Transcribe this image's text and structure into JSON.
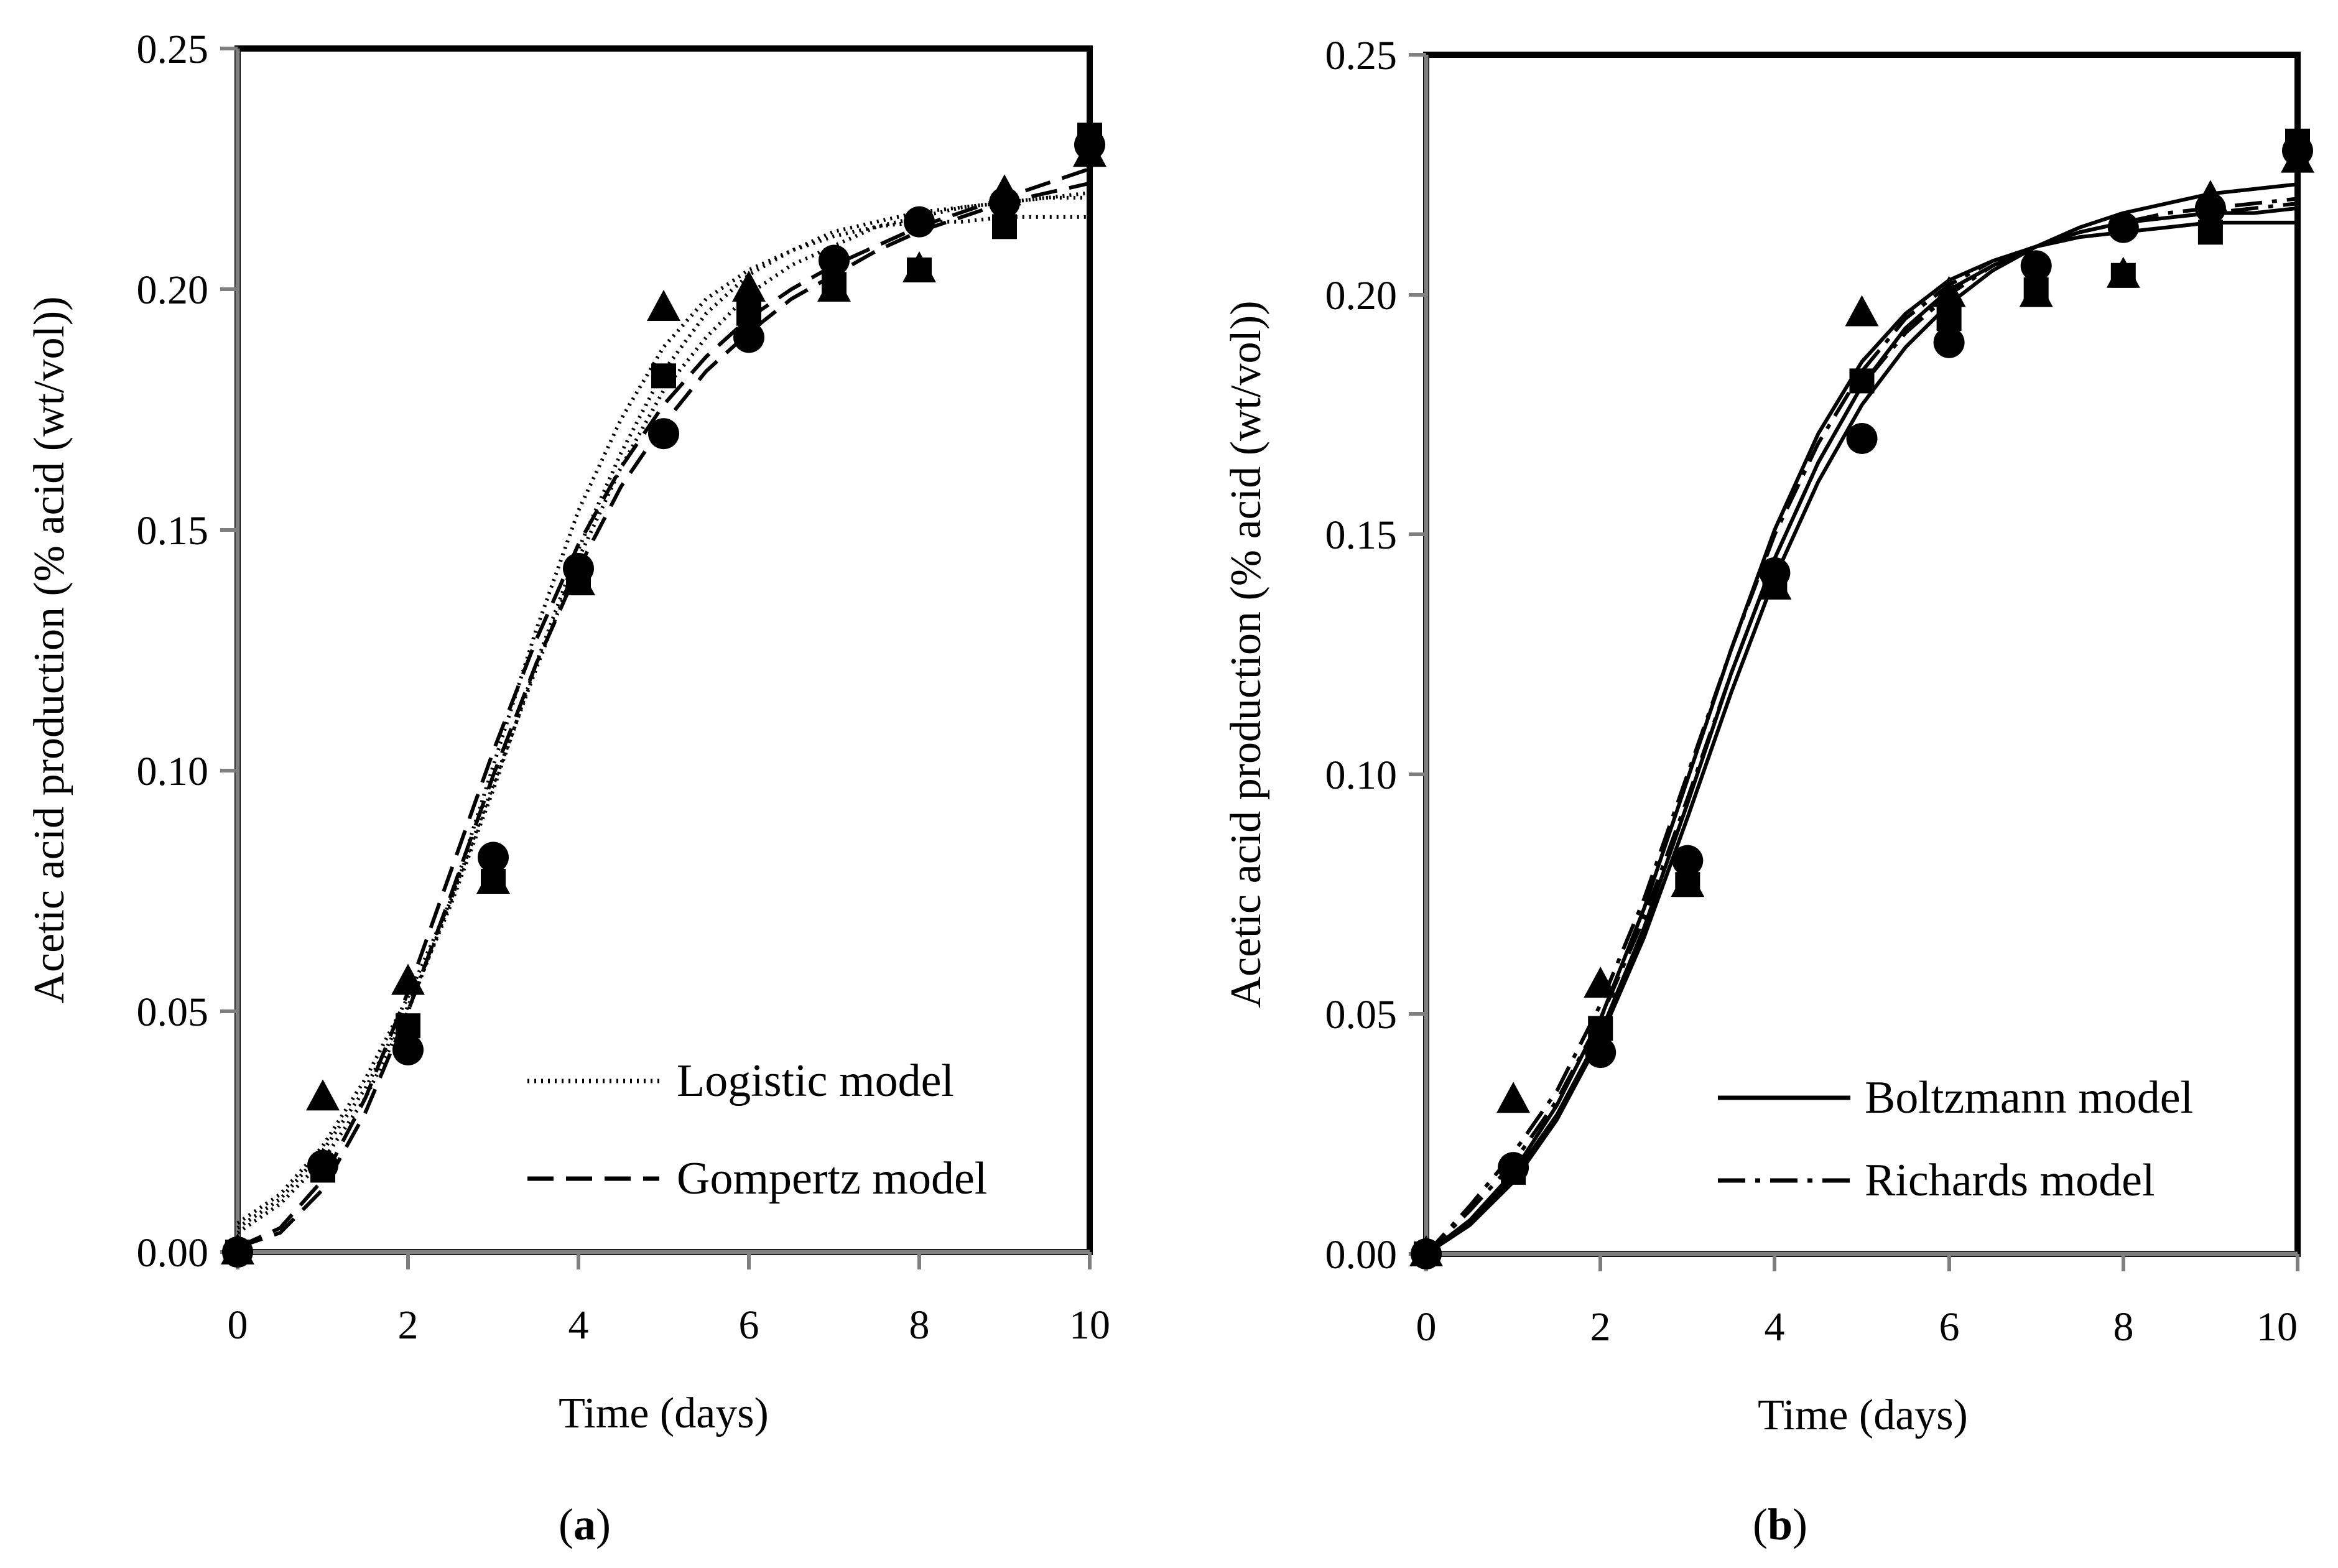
{
  "chart_data": [
    {
      "type": "line",
      "panel_label_open": "(",
      "panel_label_letter": "a",
      "panel_label_close": ")",
      "title": "",
      "xlabel": "Time (days)",
      "ylabel": "Acetic acid production (% acid (wt/vol))",
      "xlim": [
        0,
        10
      ],
      "ylim": [
        0,
        0.25
      ],
      "xticks": [
        0,
        2,
        4,
        6,
        8,
        10
      ],
      "xtick_labels": [
        "0",
        "2",
        "4",
        "6",
        "8",
        "10"
      ],
      "yticks": [
        0,
        0.05,
        0.1,
        0.15,
        0.2,
        0.25
      ],
      "ytick_labels": [
        "0.00",
        "0.05",
        "0.10",
        "0.15",
        "0.20",
        "0.25"
      ],
      "grid": false,
      "legend_position": "bottom-right",
      "legend": [
        {
          "label": "Logistic model",
          "style": "dotted"
        },
        {
          "label": "Gompertz model",
          "style": "dashed"
        }
      ],
      "observed": [
        {
          "marker": "triangle",
          "x": [
            0,
            1,
            2,
            3,
            4,
            5,
            6,
            7,
            8,
            9,
            10
          ],
          "y": [
            0,
            0.032,
            0.056,
            0.077,
            0.139,
            0.196,
            0.2,
            0.2,
            0.204,
            0.22,
            0.228
          ]
        },
        {
          "marker": "square",
          "x": [
            0,
            1,
            2,
            3,
            4,
            5,
            6,
            7,
            8,
            9,
            10
          ],
          "y": [
            0,
            0.017,
            0.047,
            0.077,
            0.14,
            0.182,
            0.195,
            0.201,
            0.204,
            0.213,
            0.232
          ]
        },
        {
          "marker": "circle",
          "x": [
            0,
            1,
            2,
            3,
            4,
            5,
            6,
            7,
            8,
            9,
            10
          ],
          "y": [
            0,
            0.018,
            0.042,
            0.082,
            0.142,
            0.17,
            0.19,
            0.206,
            0.214,
            0.218,
            0.23
          ]
        }
      ],
      "fitted": [
        {
          "model": "Logistic",
          "style": "dotted",
          "x": [
            0,
            0.5,
            1,
            1.5,
            2,
            2.5,
            3,
            3.5,
            4,
            4.5,
            5,
            5.5,
            6,
            6.5,
            7,
            7.5,
            8,
            8.5,
            9,
            9.5,
            10
          ],
          "y": [
            0.004,
            0.01,
            0.019,
            0.032,
            0.05,
            0.073,
            0.101,
            0.129,
            0.154,
            0.173,
            0.188,
            0.198,
            0.204,
            0.208,
            0.211,
            0.213,
            0.214,
            0.214,
            0.215,
            0.215,
            0.215
          ]
        },
        {
          "model": "Logistic",
          "style": "dotted",
          "x": [
            0,
            0.5,
            1,
            1.5,
            2,
            2.5,
            3,
            3.5,
            4,
            4.5,
            5,
            5.5,
            6,
            6.5,
            7,
            7.5,
            8,
            8.5,
            9,
            9.5,
            10
          ],
          "y": [
            0.005,
            0.011,
            0.021,
            0.034,
            0.051,
            0.072,
            0.096,
            0.122,
            0.146,
            0.166,
            0.183,
            0.195,
            0.203,
            0.208,
            0.212,
            0.214,
            0.216,
            0.217,
            0.218,
            0.219,
            0.219
          ]
        },
        {
          "model": "Logistic",
          "style": "dotted",
          "x": [
            0,
            0.5,
            1,
            1.5,
            2,
            2.5,
            3,
            3.5,
            4,
            4.5,
            5,
            5.5,
            6,
            6.5,
            7,
            7.5,
            8,
            8.5,
            9,
            9.5,
            10
          ],
          "y": [
            0.006,
            0.012,
            0.022,
            0.036,
            0.053,
            0.073,
            0.097,
            0.121,
            0.144,
            0.163,
            0.179,
            0.19,
            0.199,
            0.205,
            0.209,
            0.213,
            0.215,
            0.217,
            0.218,
            0.219,
            0.22
          ]
        },
        {
          "model": "Gompertz",
          "style": "dashed",
          "x": [
            0,
            0.5,
            1,
            1.5,
            2,
            2.5,
            3,
            3.5,
            4,
            4.5,
            5,
            5.5,
            6,
            6.5,
            7,
            7.5,
            8,
            8.5,
            9,
            9.5,
            10
          ],
          "y": [
            0.001,
            0.005,
            0.015,
            0.032,
            0.054,
            0.079,
            0.104,
            0.127,
            0.147,
            0.163,
            0.176,
            0.186,
            0.194,
            0.2,
            0.205,
            0.209,
            0.213,
            0.216,
            0.219,
            0.222,
            0.225
          ]
        },
        {
          "model": "Gompertz",
          "style": "dashed",
          "x": [
            0,
            0.5,
            1,
            1.5,
            2,
            2.5,
            3,
            3.5,
            4,
            4.5,
            5,
            5.5,
            6,
            6.5,
            7,
            7.5,
            8,
            8.5,
            9,
            9.5,
            10
          ],
          "y": [
            0.001,
            0.004,
            0.013,
            0.029,
            0.05,
            0.074,
            0.099,
            0.122,
            0.142,
            0.159,
            0.172,
            0.183,
            0.191,
            0.198,
            0.203,
            0.208,
            0.212,
            0.215,
            0.218,
            0.22,
            0.222
          ]
        }
      ]
    },
    {
      "type": "line",
      "panel_label_open": "(",
      "panel_label_letter": "b",
      "panel_label_close": ")",
      "title": "",
      "xlabel": "Time (days)",
      "ylabel": "Acetic acid production (% acid (wt/vol))",
      "xlim": [
        0,
        10
      ],
      "ylim": [
        0,
        0.25
      ],
      "xticks": [
        0,
        2,
        4,
        6,
        8,
        10
      ],
      "xtick_labels": [
        "0",
        "2",
        "4",
        "6",
        "8",
        "10"
      ],
      "yticks": [
        0,
        0.05,
        0.1,
        0.15,
        0.2,
        0.25
      ],
      "ytick_labels": [
        "0.00",
        "0.05",
        "0.10",
        "0.15",
        "0.20",
        "0.25"
      ],
      "grid": false,
      "legend_position": "bottom-right",
      "legend": [
        {
          "label": "Boltzmann model",
          "style": "solid"
        },
        {
          "label": "Richards model",
          "style": "dashdot"
        }
      ],
      "observed": [
        {
          "marker": "triangle",
          "x": [
            0,
            1,
            2,
            3,
            4,
            5,
            6,
            7,
            8,
            9,
            10
          ],
          "y": [
            0,
            0.032,
            0.056,
            0.077,
            0.139,
            0.196,
            0.2,
            0.2,
            0.204,
            0.22,
            0.228
          ]
        },
        {
          "marker": "square",
          "x": [
            0,
            1,
            2,
            3,
            4,
            5,
            6,
            7,
            8,
            9,
            10
          ],
          "y": [
            0,
            0.017,
            0.047,
            0.077,
            0.14,
            0.182,
            0.195,
            0.201,
            0.204,
            0.213,
            0.232
          ]
        },
        {
          "marker": "circle",
          "x": [
            0,
            1,
            2,
            3,
            4,
            5,
            6,
            7,
            8,
            9,
            10
          ],
          "y": [
            0,
            0.018,
            0.042,
            0.082,
            0.142,
            0.17,
            0.19,
            0.206,
            0.214,
            0.218,
            0.23
          ]
        }
      ],
      "fitted": [
        {
          "model": "Boltzmann",
          "style": "solid",
          "x": [
            0,
            0.5,
            1,
            1.5,
            2,
            2.5,
            3,
            3.5,
            4,
            4.5,
            5,
            5.5,
            6,
            6.5,
            7,
            7.5,
            8,
            8.5,
            9,
            9.5,
            10
          ],
          "y": [
            0,
            0.007,
            0.017,
            0.031,
            0.049,
            0.072,
            0.099,
            0.126,
            0.151,
            0.171,
            0.186,
            0.196,
            0.203,
            0.207,
            0.21,
            0.212,
            0.213,
            0.214,
            0.215,
            0.215,
            0.215
          ]
        },
        {
          "model": "Boltzmann",
          "style": "solid",
          "x": [
            0,
            0.5,
            1,
            1.5,
            2,
            2.5,
            3,
            3.5,
            4,
            4.5,
            5,
            5.5,
            6,
            6.5,
            7,
            7.5,
            8,
            8.5,
            9,
            9.5,
            10
          ],
          "y": [
            0,
            0.007,
            0.016,
            0.029,
            0.046,
            0.068,
            0.094,
            0.121,
            0.145,
            0.165,
            0.181,
            0.193,
            0.201,
            0.206,
            0.21,
            0.213,
            0.215,
            0.216,
            0.217,
            0.217,
            0.218
          ]
        },
        {
          "model": "Boltzmann",
          "style": "solid",
          "x": [
            0,
            0.5,
            1,
            1.5,
            2,
            2.5,
            3,
            3.5,
            4,
            4.5,
            5,
            5.5,
            6,
            6.5,
            7,
            7.5,
            8,
            8.5,
            9,
            9.5,
            10
          ],
          "y": [
            0,
            0.006,
            0.015,
            0.028,
            0.045,
            0.066,
            0.091,
            0.117,
            0.141,
            0.161,
            0.177,
            0.189,
            0.198,
            0.205,
            0.21,
            0.214,
            0.217,
            0.219,
            0.221,
            0.222,
            0.223
          ]
        },
        {
          "model": "Richards",
          "style": "dashdot",
          "x": [
            0,
            0.5,
            1,
            1.5,
            2,
            2.5,
            3,
            3.5,
            4,
            4.5,
            5,
            5.5,
            6,
            6.5,
            7,
            7.5,
            8,
            8.5,
            9,
            9.5,
            10
          ],
          "y": [
            0,
            0.01,
            0.021,
            0.034,
            0.052,
            0.074,
            0.1,
            0.126,
            0.15,
            0.169,
            0.184,
            0.195,
            0.202,
            0.207,
            0.21,
            0.213,
            0.215,
            0.216,
            0.217,
            0.218,
            0.219
          ]
        },
        {
          "model": "Richards",
          "style": "dashdot",
          "x": [
            0,
            0.5,
            1,
            1.5,
            2,
            2.5,
            3,
            3.5,
            4,
            4.5,
            5,
            5.5,
            6,
            6.5,
            7,
            7.5,
            8,
            8.5,
            9,
            9.5,
            10
          ],
          "y": [
            0,
            0.009,
            0.019,
            0.032,
            0.049,
            0.07,
            0.095,
            0.121,
            0.145,
            0.165,
            0.181,
            0.192,
            0.2,
            0.206,
            0.21,
            0.213,
            0.215,
            0.217,
            0.218,
            0.219,
            0.22
          ]
        }
      ]
    }
  ]
}
